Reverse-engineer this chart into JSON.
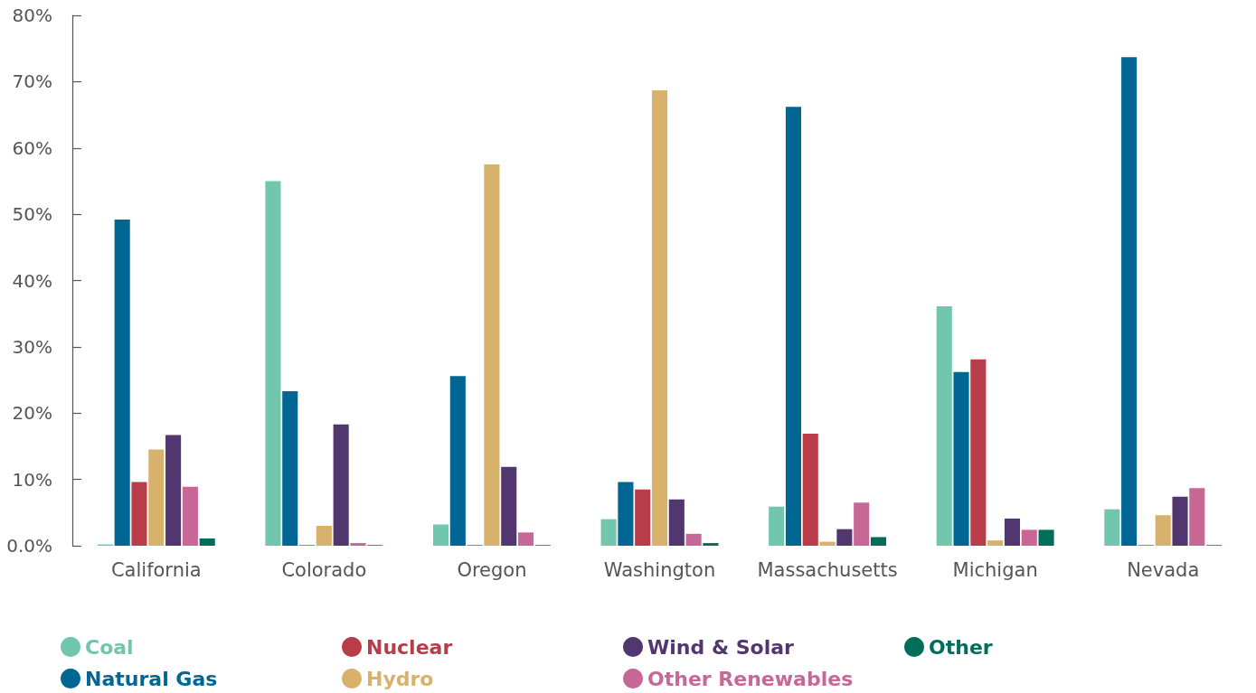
{
  "chart_data": {
    "type": "bar",
    "categories": [
      "California",
      "Colorado",
      "Oregon",
      "Washington",
      "Massachusetts",
      "Michigan",
      "Nevada"
    ],
    "series": [
      {
        "name": "Coal",
        "color": "#70c7ae",
        "values": [
          0.2,
          55.0,
          3.2,
          4.0,
          5.9,
          36.1,
          5.5
        ]
      },
      {
        "name": "Natural Gas",
        "color": "#006794",
        "values": [
          49.2,
          23.3,
          25.6,
          9.6,
          66.2,
          26.2,
          73.7
        ]
      },
      {
        "name": "Nuclear",
        "color": "#b83d48",
        "values": [
          9.6,
          0.1,
          0.1,
          8.5,
          16.9,
          28.1,
          0.1
        ]
      },
      {
        "name": "Hydro",
        "color": "#d8b16a",
        "values": [
          14.5,
          3.0,
          57.5,
          68.7,
          0.6,
          0.8,
          4.6
        ]
      },
      {
        "name": "Wind & Solar",
        "color": "#52366f",
        "values": [
          16.7,
          18.3,
          11.9,
          7.0,
          2.5,
          4.1,
          7.4
        ]
      },
      {
        "name": "Other Renewables",
        "color": "#c76796",
        "values": [
          8.9,
          0.4,
          2.0,
          1.8,
          6.5,
          2.4,
          8.7
        ]
      },
      {
        "name": "Other",
        "color": "#006e5a",
        "values": [
          1.1,
          0.1,
          0.1,
          0.4,
          1.3,
          2.4,
          0.1
        ]
      }
    ],
    "ylim": [
      0,
      80
    ],
    "yticks": [
      {
        "value": 0,
        "label": "0.0%"
      },
      {
        "value": 10,
        "label": "10%"
      },
      {
        "value": 20,
        "label": "20%"
      },
      {
        "value": 30,
        "label": "30%"
      },
      {
        "value": 40,
        "label": "40%"
      },
      {
        "value": 50,
        "label": "50%"
      },
      {
        "value": 60,
        "label": "60%"
      },
      {
        "value": 70,
        "label": "70%"
      },
      {
        "value": 80,
        "label": "80%"
      }
    ],
    "grid": false,
    "legend": "bottom"
  }
}
